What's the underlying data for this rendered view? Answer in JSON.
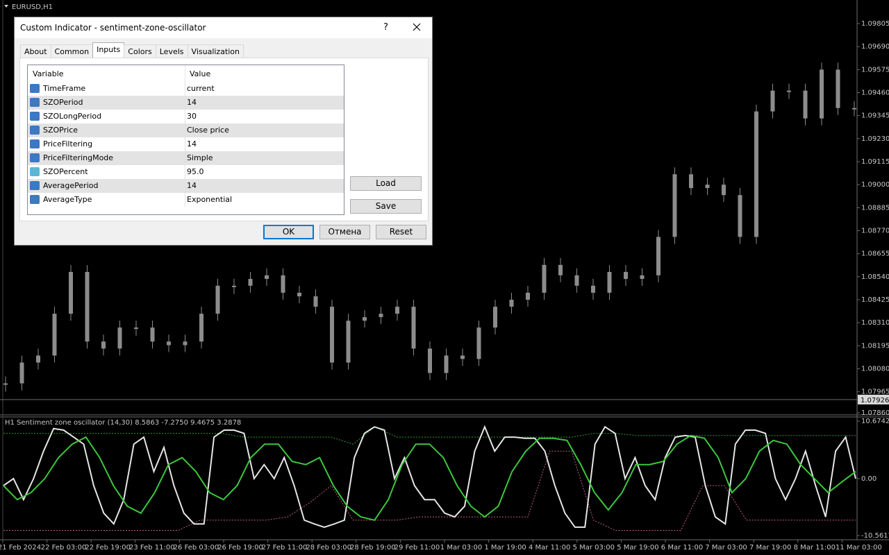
{
  "chart_window": {
    "symbol": "EURUSD,H1",
    "price_axis": {
      "ylim": [
        1.0786,
        1.09805
      ],
      "ticks": [
        1.09805,
        {
          "value": 1.0969,
          "label": "1.09690"
        },
        1.09575,
        {
          "value": 1.0946,
          "label": "1.09460"
        },
        1.09345,
        {
          "value": 1.0923,
          "label": "1.09230"
        },
        1.09115,
        {
          "value": 1.09,
          "label": "1.09000"
        },
        1.08885,
        {
          "value": 1.0877,
          "label": "1.08770"
        },
        1.08655,
        {
          "value": 1.0854,
          "label": "1.08540"
        },
        1.08425,
        {
          "value": 1.0831,
          "label": "1.08310"
        },
        1.08195,
        {
          "value": 1.0808,
          "label": "1.08080"
        },
        1.07965,
        {
          "value": 1.0786,
          "label": "1.07860"
        }
      ],
      "current_price": 1.07926
    },
    "closes": [
      1.08007,
      1.08111,
      1.08146,
      1.08355,
      1.08564,
      1.08216,
      1.08181,
      1.08286,
      1.08286,
      1.08216,
      1.08198,
      1.08216,
      1.08355,
      1.08495,
      1.08495,
      1.08529,
      1.08547,
      1.0846,
      1.08442,
      1.0839,
      1.08111,
      1.0832,
      1.08338,
      1.08355,
      1.0839,
      1.08181,
      1.08059,
      1.08146,
      1.08129,
      1.08286,
      1.0839,
      1.08425,
      1.0846,
      1.08599,
      1.08547,
      1.08495,
      1.0846,
      1.08564,
      1.08529,
      1.08547,
      1.08739,
      1.09052,
      1.08983,
      1.09,
      1.08948,
      1.08739,
      1.09366,
      1.0947,
      1.0947,
      1.09331,
      1.09575,
      1.09383,
      1.09383
    ],
    "candle_color": "#8c8c8c",
    "time_labels": [
      "21 Feb 2024",
      "22 Feb 03:00",
      "22 Feb 19:00",
      "23 Feb 11:00",
      "26 Feb 03:00",
      "26 Feb 19:00",
      "27 Feb 11:00",
      "28 Feb 03:00",
      "28 Feb 19:00",
      "29 Feb 11:00",
      "1 Mar 03:00",
      "1 Mar 19:00",
      "4 Mar 11:00",
      "5 Mar 03:00",
      "5 Mar 19:00",
      "6 Mar 11:00",
      "7 Mar 03:00",
      "7 Mar 19:00",
      "8 Mar 11:00",
      "11 Mar 03:00"
    ],
    "oscillator": {
      "title": "H1 Sentiment zone oscillator (14,30) 8.5863 -7.2750 9.4675 3.2878",
      "ylim": [
        -10.5617,
        10.6742
      ],
      "ticks": [
        10.6742,
        {
          "value": 0,
          "label": "0.00"
        },
        -10.5617
      ],
      "lines": [
        {
          "color": "#2aa52a",
          "style": "dotted",
          "values": [
            8.4,
            8.4,
            8.4,
            8.4,
            8.4,
            8.4,
            8.4,
            8.4,
            8.4,
            8.4,
            8.4,
            7.7,
            7.7,
            7.7,
            7.7,
            7.7,
            6.4,
            9.6,
            7.7,
            7.7,
            7.7,
            7.7,
            7.7,
            7.7,
            7.7,
            7.7,
            7.7,
            8.4,
            8.4,
            8.0,
            8.0,
            8.0,
            8.0,
            8.0,
            8.0,
            8.0,
            8.0,
            8.0,
            8.0,
            8.0
          ]
        },
        {
          "color": "#c0607a",
          "style": "dotted",
          "values": [
            -9.6,
            -9.6,
            -9.6,
            -9.6,
            -9.6,
            -9.6,
            -9.6,
            -9.6,
            -9.6,
            -7.7,
            -7.7,
            -7.7,
            -7.7,
            -7.1,
            -4.5,
            -1.3,
            -7.7,
            -7.7,
            -7.7,
            -7.1,
            -7.1,
            -7.1,
            -7.1,
            -7.1,
            -7.1,
            5.1,
            5.1,
            -7.7,
            -9.6,
            -9.6,
            -9.6,
            -9.6,
            -1.3,
            -1.3,
            -7.7,
            -7.7,
            -7.7,
            -7.7,
            -7.7,
            -7.7
          ]
        },
        {
          "color": "#e6e6e6",
          "style": "solid",
          "values": [
            -1.3,
            0,
            -3.9,
            0,
            5.1,
            9.3,
            9.0,
            7.7,
            6.4,
            -1.3,
            -6.4,
            -8.4,
            -3.9,
            6.4,
            7.7,
            1.3,
            5.8,
            -1.3,
            -6.4,
            -8.4,
            -8.4,
            7.7,
            9.0,
            9.0,
            8.4,
            0,
            2.6,
            0,
            3.9,
            -1.3,
            -7.7,
            -8.4,
            -9.0,
            -8.4,
            -7.7,
            3.9,
            8.4,
            9.6,
            9.0,
            0,
            3.9,
            -1.3,
            -3.9,
            -3.9,
            -6.4,
            -7.1,
            -5.1,
            5.1,
            9.6,
            5.1,
            7.7,
            7.7,
            7.5,
            7.5,
            5.1,
            -1.3,
            -6.4,
            -9.0,
            -9.0,
            6.4,
            9.6,
            8.4,
            0,
            3.9,
            -1.3,
            -3.9,
            3.9,
            7.7,
            8.0,
            7.7,
            -1.3,
            -7.1,
            -8.4,
            6.4,
            9.0,
            9.0,
            8.4,
            0,
            -3.9,
            0,
            5.1,
            -1.3,
            -7.1,
            5.1,
            7.7,
            0
          ]
        },
        {
          "color": "#3cc83c",
          "style": "solid",
          "values": [
            -1.3,
            -3.9,
            -2.6,
            0,
            3.9,
            6.4,
            7.7,
            3.9,
            -1.3,
            -5.1,
            -6.4,
            -2.6,
            2.6,
            3.9,
            1.3,
            -2.6,
            -3.9,
            -1.3,
            3.9,
            6.4,
            6.4,
            3.2,
            2.6,
            3.9,
            -1.3,
            -5.1,
            -7.1,
            -7.7,
            -3.9,
            2.6,
            6.4,
            6.4,
            3.9,
            -1.3,
            -5.1,
            -7.1,
            -5.1,
            1.3,
            5.1,
            7.5,
            7.5,
            7.1,
            2.6,
            -2.6,
            -5.8,
            -2.6,
            2.6,
            2.6,
            3.2,
            6.4,
            8.0,
            7.5,
            3.9,
            -2.6,
            0,
            5.1,
            7.1,
            6.4,
            2.6,
            0,
            -2.6,
            -0.6,
            1.3
          ]
        }
      ]
    }
  },
  "dialog": {
    "title": "Custom Indicator - sentiment-zone-oscillator",
    "help": "?",
    "tabs": [
      "About",
      "Common",
      "Inputs",
      "Colors",
      "Levels",
      "Visualization"
    ],
    "active_tab": 2,
    "table": {
      "header": [
        "Variable",
        "Value"
      ],
      "rows": [
        [
          "TimeFrame",
          "current"
        ],
        [
          "SZOPeriod",
          "14"
        ],
        [
          "SZOLongPeriod",
          "30"
        ],
        [
          "SZOPrice",
          "Close price"
        ],
        [
          "PriceFiltering",
          "14"
        ],
        [
          "PriceFilteringMode",
          "Simple"
        ],
        [
          "SZOPercent",
          "95.0"
        ],
        [
          "AveragePeriod",
          "14"
        ],
        [
          "AverageType",
          "Exponential"
        ]
      ]
    },
    "side_buttons": [
      "Load",
      "Save"
    ],
    "bottom_buttons": [
      "OK",
      "Отмена",
      "Reset"
    ]
  }
}
